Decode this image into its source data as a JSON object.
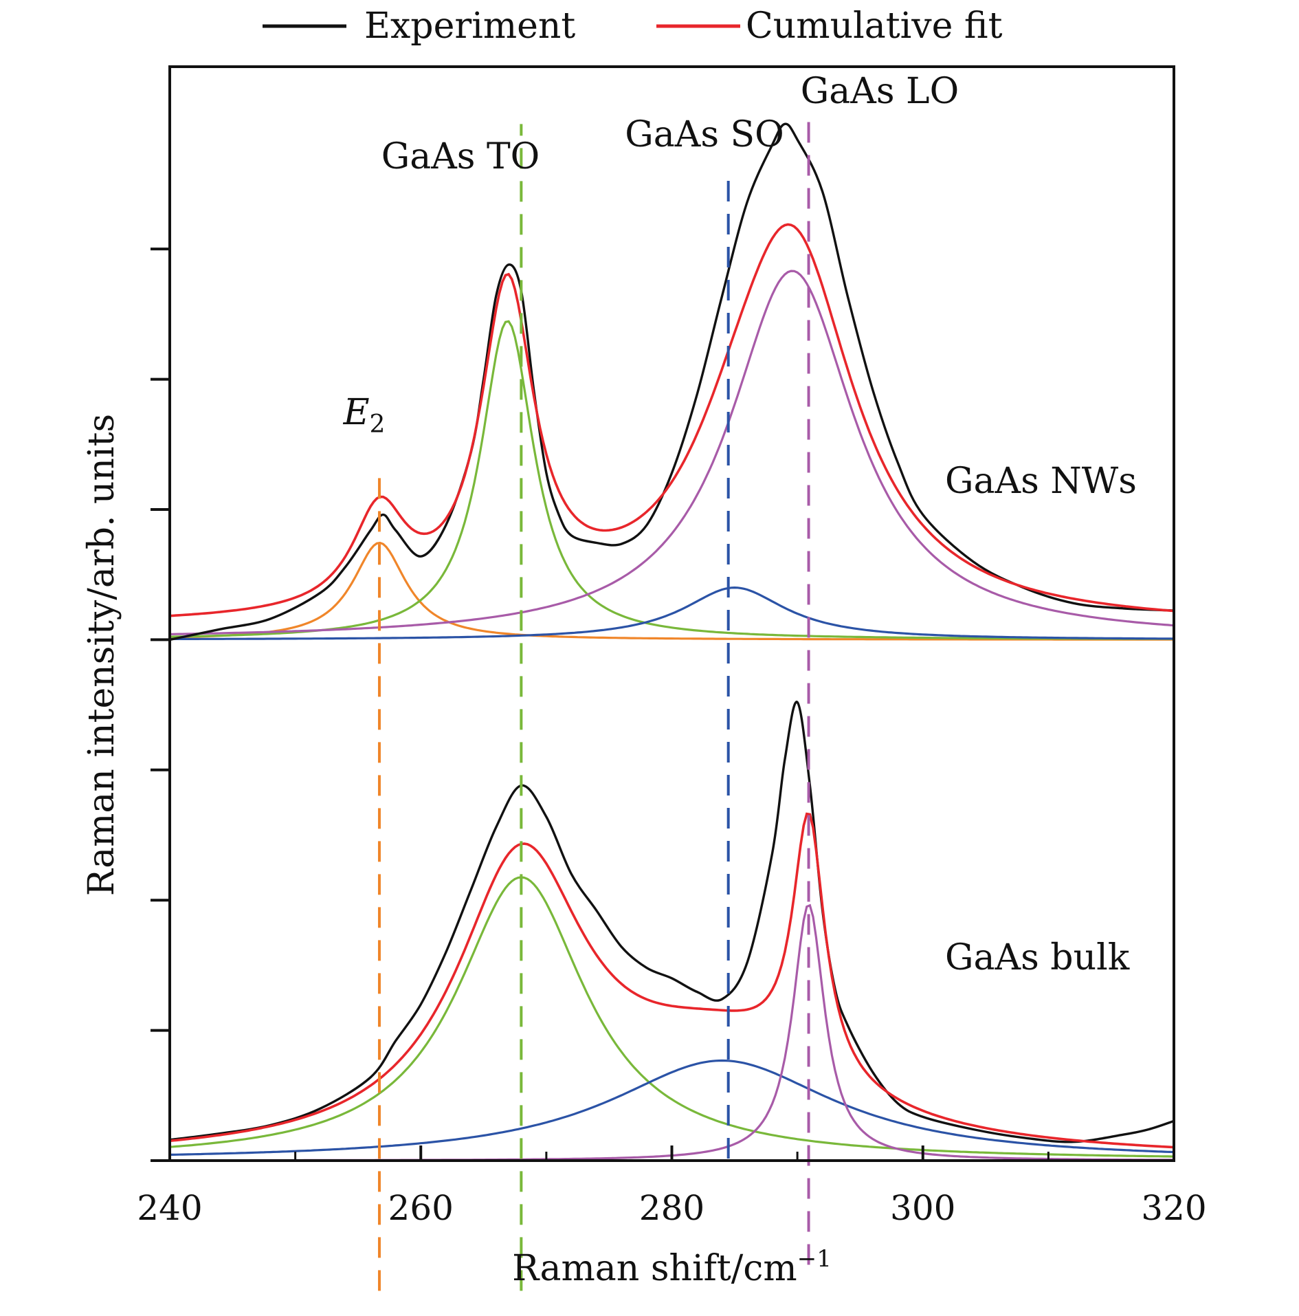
{
  "chart_data": {
    "type": "line",
    "title": "",
    "xlabel": "Raman shift/cm",
    "xlabel_sup": "−1",
    "ylabel": "Raman intensity/arb. units",
    "xlim": [
      240,
      320
    ],
    "x_ticks": [
      "240",
      "260",
      "280",
      "300",
      "320"
    ],
    "x_minor_step": 10,
    "ylim": [
      0,
      10.5
    ],
    "y_tick_count": 9,
    "grid": false,
    "legend": {
      "placement": "top-center",
      "entries": [
        {
          "name": "Experiment",
          "color": "#111111"
        },
        {
          "name": "Cumulative fit",
          "color": "#e8262b"
        }
      ]
    },
    "peak_markers": [
      {
        "label": "E",
        "sub": "2",
        "italic": true,
        "x": 256.7,
        "color": "#f0862a"
      },
      {
        "label": "GaAs TO",
        "x": 268.0,
        "color": "#79b83a"
      },
      {
        "label": "GaAs SO",
        "x": 284.5,
        "color": "#2b53a6"
      },
      {
        "label": "GaAs LO",
        "x": 290.9,
        "color": "#a85ba8"
      }
    ],
    "panels": [
      {
        "label": "GaAs NWs",
        "baseline": 5.0,
        "experiment": {
          "x": [
            240,
            244,
            248,
            252,
            254,
            256,
            257,
            258,
            260,
            262,
            264,
            265,
            266,
            267,
            268,
            269,
            270,
            271,
            272,
            274,
            276,
            278,
            280,
            282,
            284,
            286,
            288,
            289,
            290,
            292,
            294,
            296,
            298,
            300,
            304,
            308,
            312,
            316,
            320
          ],
          "y": [
            5.0,
            5.1,
            5.2,
            5.45,
            5.7,
            6.05,
            6.2,
            6.05,
            5.8,
            6.1,
            6.8,
            7.5,
            8.3,
            8.6,
            8.35,
            7.4,
            6.6,
            6.2,
            6.0,
            5.93,
            5.92,
            6.1,
            6.6,
            7.35,
            8.3,
            9.2,
            9.75,
            9.95,
            9.8,
            9.3,
            8.3,
            7.4,
            6.7,
            6.2,
            5.75,
            5.5,
            5.35,
            5.3,
            5.28
          ]
        },
        "components": [
          {
            "name": "E2",
            "color": "#f0862a",
            "center": 256.7,
            "amp": 0.93,
            "hwhm": 2.6
          },
          {
            "name": "GaAs TO",
            "color": "#79b83a",
            "center": 266.9,
            "amp": 3.06,
            "hwhm": 2.6
          },
          {
            "name": "GaAs SO",
            "color": "#2b53a6",
            "center": 285.0,
            "amp": 0.5,
            "hwhm": 5.0
          },
          {
            "name": "GaAs LO",
            "color": "#a85ba8",
            "center": 289.6,
            "amp": 3.54,
            "hwhm": 6.1
          }
        ],
        "offset": 0.12
      },
      {
        "label": "GaAs bulk",
        "baseline": 0.0,
        "experiment": {
          "x": [
            240,
            244,
            248,
            252,
            256,
            258,
            260,
            262,
            264,
            266,
            268,
            270,
            272,
            274,
            276,
            278,
            280,
            282,
            284,
            286,
            288,
            289,
            290,
            291,
            292,
            293,
            294,
            296,
            298,
            300,
            304,
            308,
            312,
            316,
            318,
            320
          ],
          "y": [
            0.2,
            0.26,
            0.34,
            0.5,
            0.8,
            1.15,
            1.5,
            2.0,
            2.6,
            3.2,
            3.6,
            3.3,
            2.75,
            2.4,
            2.05,
            1.85,
            1.75,
            1.62,
            1.55,
            1.9,
            2.95,
            3.85,
            4.4,
            3.6,
            2.4,
            1.65,
            1.3,
            0.85,
            0.55,
            0.42,
            0.3,
            0.22,
            0.18,
            0.25,
            0.3,
            0.38
          ]
        },
        "components": [
          {
            "name": "GaAs TO",
            "color": "#79b83a",
            "center": 268.0,
            "amp": 2.72,
            "hwhm": 6.3
          },
          {
            "name": "GaAs SO",
            "color": "#2b53a6",
            "center": 284.0,
            "amp": 0.96,
            "hwhm": 11.0
          },
          {
            "name": "GaAs LO",
            "color": "#a85ba8",
            "center": 290.9,
            "amp": 2.46,
            "hwhm": 1.55
          }
        ],
        "offset": 0.0
      }
    ]
  }
}
